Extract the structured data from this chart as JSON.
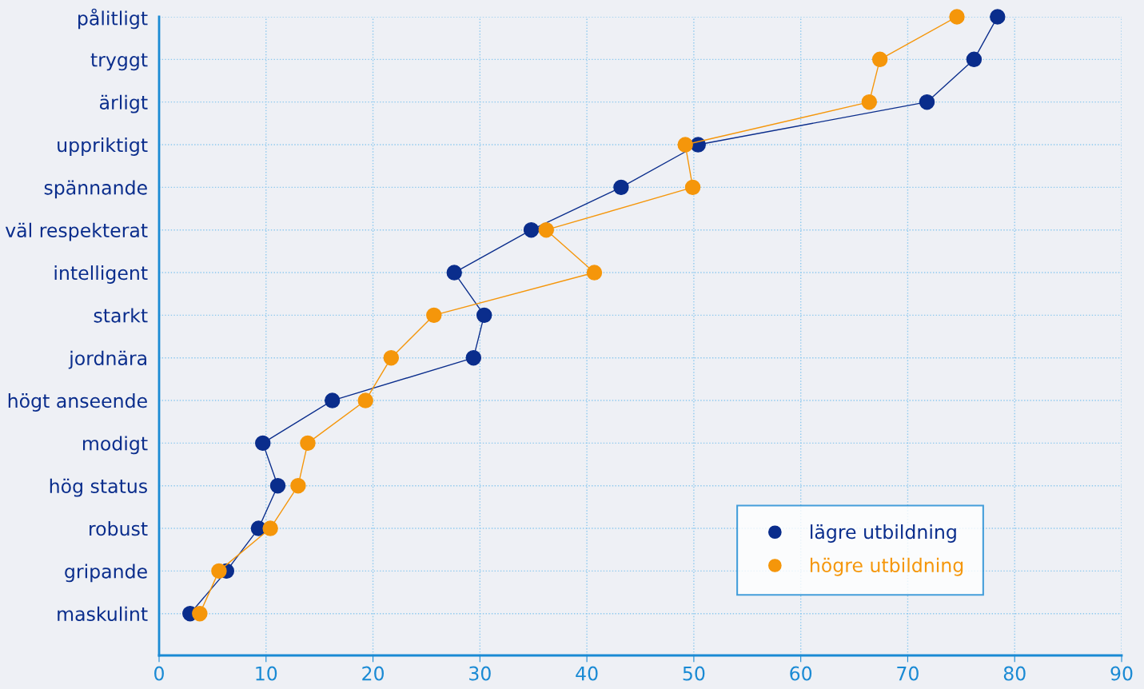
{
  "chart_data": {
    "type": "line",
    "orientation": "horizontal",
    "categories": [
      "pålitligt",
      "tryggt",
      "ärligt",
      "uppriktigt",
      "spännande",
      "väl respekterat",
      "intelligent",
      "starkt",
      "jordnära",
      "högt anseende",
      "modigt",
      "hög status",
      "robust",
      "gripande",
      "maskulint"
    ],
    "series": [
      {
        "name": "lägre utbildning",
        "color": "#0a2d8c",
        "values": [
          78.4,
          76.2,
          71.8,
          50.4,
          43.2,
          34.8,
          27.6,
          30.4,
          29.4,
          16.2,
          9.7,
          11.1,
          9.3,
          6.3,
          2.9
        ]
      },
      {
        "name": "högre utbildning",
        "color": "#f5960a",
        "values": [
          74.6,
          67.4,
          66.4,
          49.2,
          49.9,
          36.2,
          40.7,
          25.7,
          21.7,
          19.3,
          13.9,
          13.0,
          10.4,
          5.6,
          3.8
        ]
      }
    ],
    "xlim": [
      0,
      90
    ],
    "xticks": [
      0,
      10,
      20,
      30,
      40,
      50,
      60,
      70,
      80,
      90
    ],
    "grid": true,
    "legend": "bottom right",
    "marker": "circle",
    "line_style": "solid"
  }
}
